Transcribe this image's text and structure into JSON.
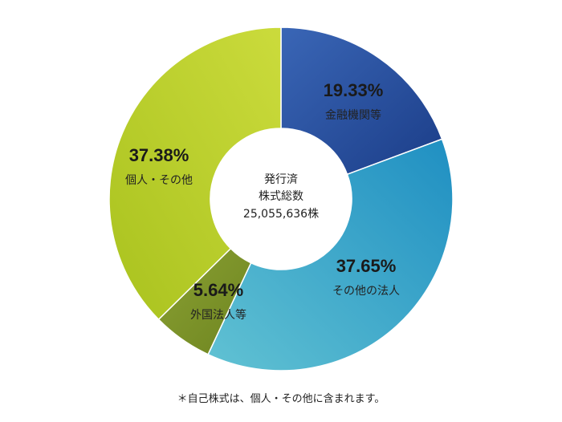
{
  "chart_data": {
    "type": "pie",
    "categories": [
      "金融機関等",
      "その他の法人",
      "外国法人等",
      "個人・その他"
    ],
    "values": [
      19.33,
      37.65,
      5.64,
      37.38
    ],
    "labels": [
      "19.33%",
      "37.65%",
      "5.64%",
      "37.38%"
    ],
    "colors": [
      [
        "#3a66b6",
        "#1b3d88"
      ],
      [
        "#61c2d3",
        "#1f8fc2"
      ],
      [
        "#8aa033",
        "#6e8520"
      ],
      [
        "#a9c21e",
        "#cbdb3c"
      ]
    ],
    "center": {
      "line1": "発行済",
      "line2": "株式総数",
      "line3": "25,055,636株"
    }
  },
  "footnote": "＊自己株式は、個人・その他に含まれます。"
}
